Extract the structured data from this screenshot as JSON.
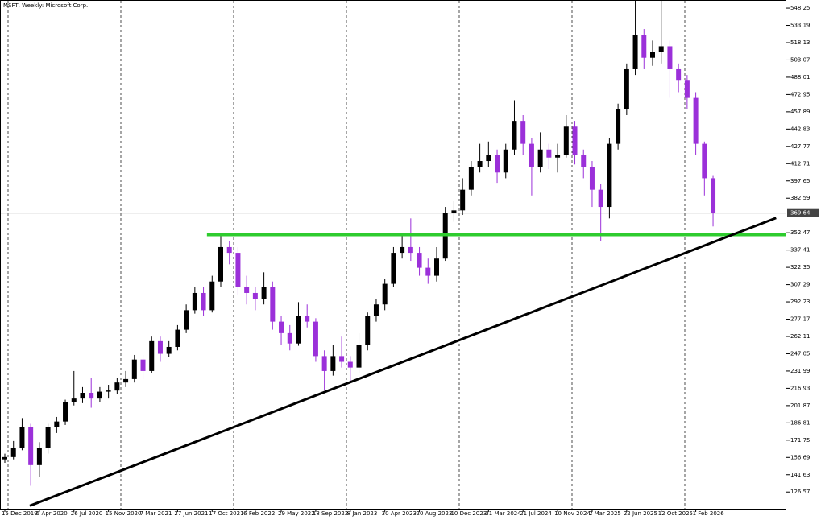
{
  "chart_data": {
    "type": "candlestick",
    "title": "MSFT, Weekly: Microsoft Corp.",
    "categories": [
      "15 Dec 2019",
      null,
      null,
      null,
      "5 Apr 2020",
      null,
      null,
      null,
      "26 Jul 2020",
      null,
      null,
      null,
      "15 Nov 2020",
      null,
      null,
      null,
      "7 Mar 2021",
      null,
      null,
      null,
      "27 Jun 2021",
      null,
      null,
      null,
      "17 Oct 2021",
      null,
      null,
      null,
      "6 Feb 2022",
      null,
      null,
      null,
      "29 May 2022",
      null,
      null,
      null,
      "18 Sep 2022",
      null,
      null,
      null,
      "8 Jan 2023",
      null,
      null,
      null,
      "30 Apr 2023",
      null,
      null,
      null,
      "20 Aug 2023",
      null,
      null,
      null,
      "10 Dec 2023",
      null,
      null,
      null,
      "31 Mar 2024",
      null,
      null,
      null,
      "21 Jul 2024",
      null,
      null,
      null,
      "10 Nov 2024",
      null,
      null,
      null,
      "2 Mar 2025",
      null,
      null,
      null,
      "22 Jun 2025",
      null,
      null,
      null,
      "12 Oct 2025",
      null,
      null,
      null,
      "1 Feb 2026",
      null,
      null
    ],
    "series": [
      {
        "up_color": "#000000",
        "down_color": "#9b30d9",
        "open": [
          155,
          157,
          165,
          183,
          150,
          165,
          183,
          188,
          205,
          208,
          213,
          208,
          214,
          215,
          222,
          225,
          242,
          232,
          258,
          247,
          253,
          268,
          285,
          300,
          285,
          310,
          340,
          335,
          305,
          300,
          295,
          305,
          275,
          265,
          256,
          280,
          275,
          245,
          232,
          245,
          240,
          235,
          255,
          280,
          290,
          308,
          335,
          340,
          335,
          322,
          315,
          330,
          370,
          372,
          390,
          410,
          415,
          420,
          405,
          425,
          450,
          430,
          410,
          425,
          418,
          420,
          445,
          420,
          410,
          390,
          375,
          430,
          460,
          495,
          525,
          505,
          510,
          515,
          495,
          485,
          470,
          430,
          400
        ],
        "high": [
          160,
          171,
          191,
          186,
          170,
          186,
          192,
          207,
          232,
          218,
          226,
          218,
          220,
          226,
          232,
          246,
          246,
          262,
          262,
          258,
          272,
          290,
          305,
          305,
          315,
          350,
          345,
          340,
          315,
          305,
          318,
          310,
          280,
          272,
          292,
          290,
          278,
          250,
          255,
          262,
          245,
          265,
          283,
          295,
          312,
          340,
          350,
          365,
          340,
          330,
          340,
          375,
          380,
          400,
          415,
          430,
          432,
          425,
          430,
          468,
          455,
          435,
          440,
          430,
          430,
          455,
          450,
          425,
          415,
          395,
          435,
          465,
          500,
          555,
          530,
          520,
          555,
          520,
          500,
          490,
          475,
          432,
          402
        ],
        "low": [
          152,
          155,
          163,
          132,
          140,
          160,
          178,
          185,
          202,
          204,
          200,
          205,
          208,
          212,
          218,
          222,
          225,
          230,
          240,
          244,
          250,
          265,
          282,
          280,
          283,
          305,
          325,
          298,
          290,
          285,
          290,
          268,
          255,
          250,
          254,
          270,
          240,
          215,
          228,
          235,
          222,
          230,
          250,
          275,
          285,
          305,
          330,
          328,
          315,
          308,
          310,
          328,
          362,
          368,
          385,
          405,
          410,
          396,
          400,
          420,
          420,
          385,
          405,
          408,
          405,
          418,
          412,
          400,
          375,
          345,
          365,
          425,
          455,
          490,
          495,
          498,
          500,
          470,
          475,
          460,
          420,
          385,
          358
        ],
        "close": [
          157,
          165,
          183,
          150,
          165,
          183,
          188,
          205,
          208,
          213,
          208,
          214,
          215,
          222,
          225,
          242,
          232,
          258,
          247,
          253,
          268,
          285,
          300,
          285,
          310,
          340,
          335,
          305,
          300,
          295,
          305,
          275,
          265,
          256,
          280,
          275,
          245,
          232,
          245,
          240,
          235,
          255,
          280,
          290,
          308,
          335,
          340,
          335,
          322,
          315,
          330,
          370,
          372,
          390,
          410,
          415,
          420,
          405,
          425,
          450,
          430,
          410,
          425,
          418,
          420,
          445,
          420,
          410,
          390,
          375,
          430,
          460,
          495,
          525,
          505,
          510,
          515,
          495,
          485,
          470,
          430,
          400,
          369.64
        ]
      }
    ],
    "ylim": [
      112,
      554.6
    ],
    "yticks": [
      548.25,
      533.19,
      518.13,
      503.07,
      488.01,
      472.95,
      457.89,
      442.83,
      427.77,
      412.71,
      397.65,
      382.59,
      352.47,
      337.41,
      322.35,
      307.29,
      292.23,
      277.17,
      262.11,
      247.05,
      231.99,
      216.93,
      201.87,
      186.81,
      171.75,
      156.69,
      141.63,
      126.57
    ],
    "last_price": 369.64,
    "trendline": {
      "x": [
        2.9,
        89.3
      ],
      "y": [
        114.6,
        365.4
      ],
      "color": "#000000"
    },
    "level": {
      "x_start": 23.4,
      "value": 350.7,
      "color": "#2ecc2e"
    }
  }
}
